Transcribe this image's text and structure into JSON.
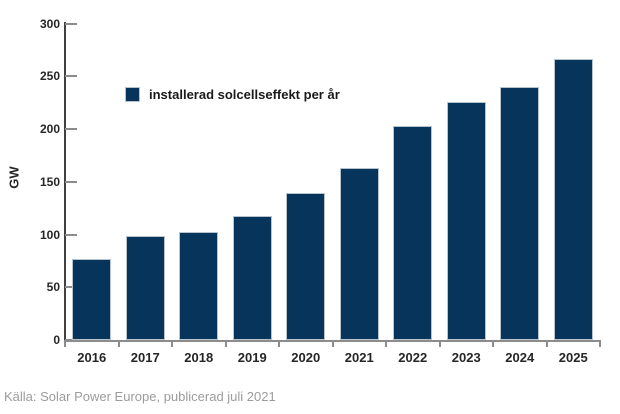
{
  "chart_data": {
    "type": "bar",
    "title": "",
    "categories": [
      "2016",
      "2017",
      "2018",
      "2019",
      "2020",
      "2021",
      "2022",
      "2023",
      "2024",
      "2025"
    ],
    "values": [
      77,
      99,
      102,
      118,
      139,
      163,
      203,
      226,
      240,
      266
    ],
    "xlabel": "",
    "ylabel": "GW",
    "ylim": [
      0,
      300
    ],
    "yticks": [
      0,
      50,
      100,
      150,
      200,
      250,
      300
    ],
    "grid": false,
    "legend": {
      "position": "inside-top-left",
      "entries": [
        {
          "label": "installerad solcellseffekt per år",
          "color": "#06345a"
        }
      ]
    },
    "bar_color": "#06345a",
    "bar_border_color": "#b7c3cd"
  },
  "source_note": "Källa: Solar Power Europe, publicerad juli 2021",
  "colors": {
    "background": "#ffffff",
    "y_axis_line": "#404040",
    "x_axis_line": "#8c8c8c",
    "tick_mark": "#8c8c8c",
    "axis_label": "#262626",
    "source_text": "#9c9c9c"
  }
}
